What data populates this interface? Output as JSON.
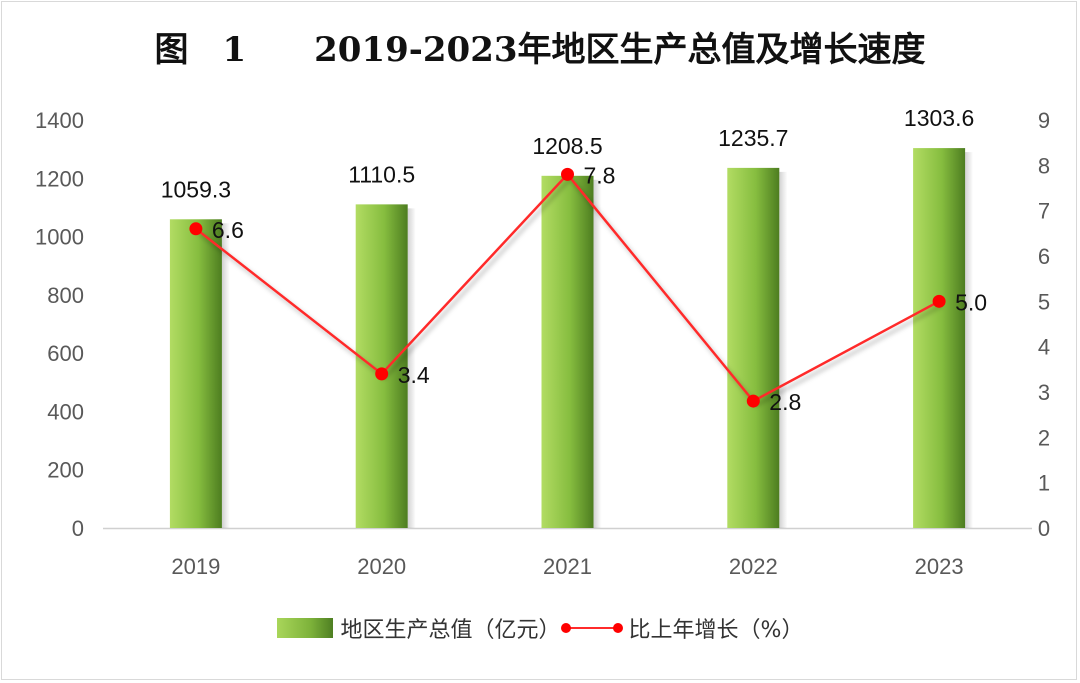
{
  "chart_data": {
    "type": "bar+line",
    "title": "图　1　　2019-2023年地区生产总值及增长速度",
    "categories": [
      "2019",
      "2020",
      "2021",
      "2022",
      "2023"
    ],
    "series": [
      {
        "name": "地区生产总值（亿元）",
        "type": "bar",
        "axis": "left",
        "values": [
          1059.3,
          1110.5,
          1208.5,
          1235.7,
          1303.6
        ],
        "labels": [
          "1059.3",
          "1110.5",
          "1208.5",
          "1235.7",
          "1303.6"
        ]
      },
      {
        "name": "比上年增长（%）",
        "type": "line",
        "axis": "right",
        "values": [
          6.6,
          3.4,
          7.8,
          2.8,
          5.0
        ],
        "labels": [
          "6.6",
          "3.4",
          "7.8",
          "2.8",
          "5.0"
        ]
      }
    ],
    "y_left": {
      "min": 0,
      "max": 1400,
      "ticks": [
        "0",
        "200",
        "400",
        "600",
        "800",
        "1000",
        "1200",
        "1400"
      ]
    },
    "y_right": {
      "min": 0,
      "max": 9,
      "ticks": [
        "0",
        "1",
        "2",
        "3",
        "4",
        "5",
        "6",
        "7",
        "8",
        "9"
      ]
    },
    "grid": false,
    "legend_position": "bottom",
    "colors": {
      "bar": "#7cb83a",
      "line": "#ff2b2b",
      "marker": "#ff0000",
      "axis_text": "#595959"
    }
  }
}
